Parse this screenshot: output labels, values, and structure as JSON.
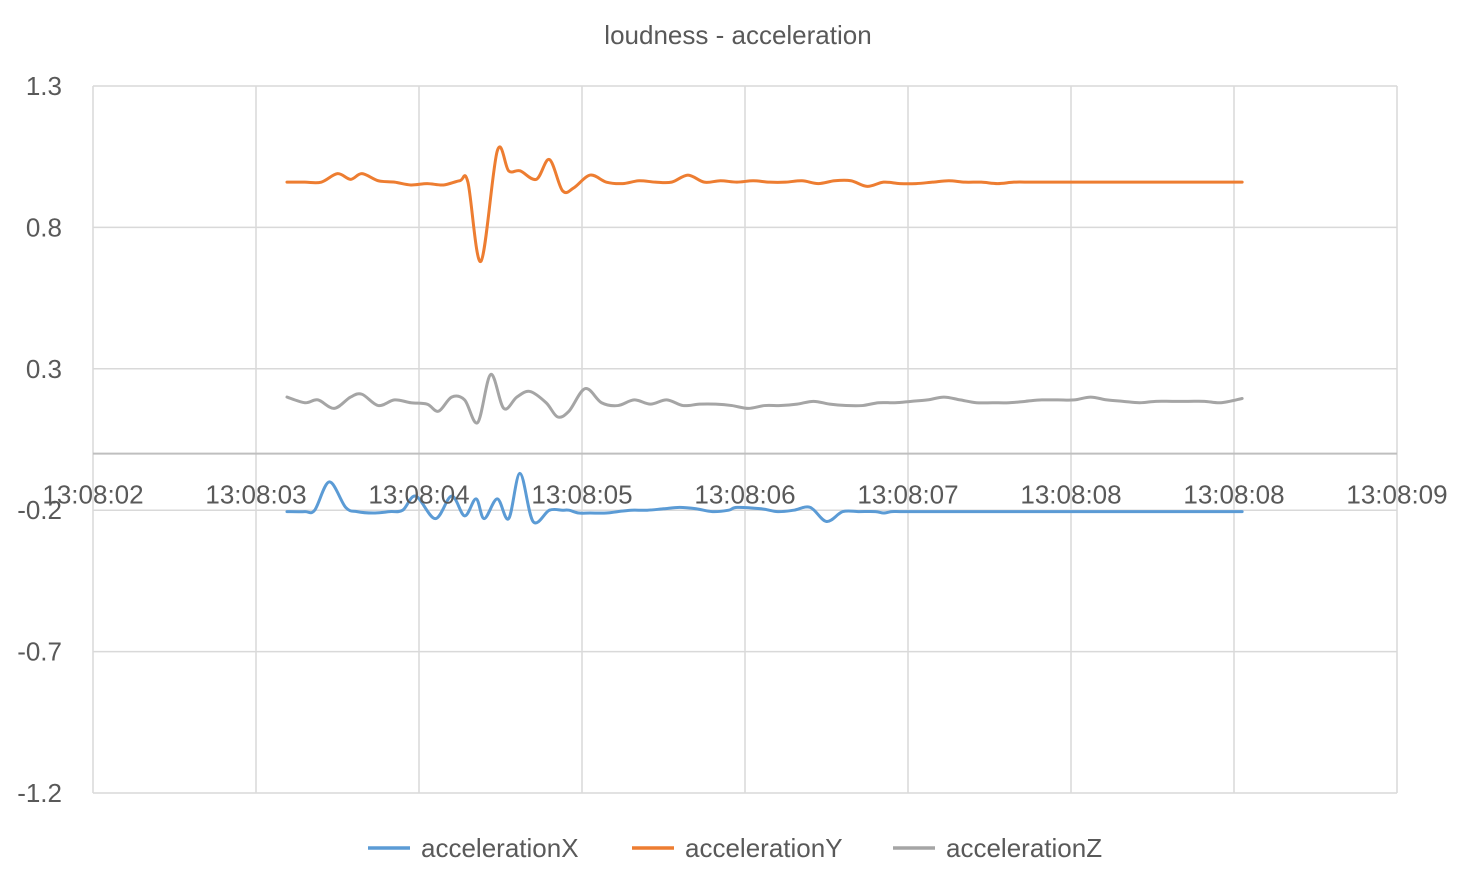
{
  "chart_data": {
    "type": "line",
    "title": "loudness - acceleration",
    "xlabel": "",
    "ylabel": "",
    "ylim": [
      -1.2,
      1.3
    ],
    "xlim": [
      0,
      8
    ],
    "y_ticks": [
      "1.3",
      "0.8",
      "0.3",
      "-0.2",
      "-0.7",
      "-1.2"
    ],
    "y_tick_values": [
      1.3,
      0.8,
      0.3,
      -0.2,
      -0.7,
      -1.2
    ],
    "x_ticks": [
      "13:08:02",
      "13:08:03",
      "13:08:04",
      "13:08:05",
      "13:08:06",
      "13:08:07",
      "13:08:08",
      "13:08:08",
      "13:08:09"
    ],
    "x_tick_values": [
      0,
      1,
      2,
      3,
      4,
      5,
      6,
      7,
      8
    ],
    "x_axis_crosses_y": 0,
    "grid": true,
    "legend_position": "bottom",
    "series": [
      {
        "name": "accelerationX",
        "color": "#5B9BD5",
        "x": [
          1.19,
          1.3,
          1.36,
          1.45,
          1.55,
          1.62,
          1.72,
          1.82,
          1.9,
          1.98,
          2.1,
          2.2,
          2.28,
          2.35,
          2.4,
          2.48,
          2.55,
          2.62,
          2.7,
          2.8,
          2.88,
          2.92,
          2.98,
          3.05,
          3.15,
          3.22,
          3.3,
          3.4,
          3.5,
          3.6,
          3.7,
          3.8,
          3.9,
          3.95,
          4.1,
          4.2,
          4.3,
          4.4,
          4.5,
          4.6,
          4.7,
          4.8,
          4.85,
          4.9,
          4.95,
          5.05,
          5.1,
          5.2,
          5.3,
          5.4,
          5.5,
          5.6,
          5.7,
          5.8,
          5.9,
          6.0,
          6.1,
          6.2,
          6.3,
          6.4,
          6.5,
          6.6,
          6.7,
          6.8,
          6.9,
          7.0,
          7.05
        ],
        "y": [
          -0.205,
          -0.205,
          -0.2,
          -0.1,
          -0.19,
          -0.205,
          -0.21,
          -0.205,
          -0.2,
          -0.15,
          -0.23,
          -0.15,
          -0.22,
          -0.16,
          -0.23,
          -0.16,
          -0.23,
          -0.07,
          -0.24,
          -0.2,
          -0.2,
          -0.2,
          -0.21,
          -0.21,
          -0.21,
          -0.205,
          -0.2,
          -0.2,
          -0.195,
          -0.19,
          -0.195,
          -0.205,
          -0.2,
          -0.19,
          -0.195,
          -0.205,
          -0.2,
          -0.19,
          -0.24,
          -0.205,
          -0.205,
          -0.205,
          -0.21,
          -0.205,
          -0.205,
          -0.205,
          -0.205,
          -0.205,
          -0.205,
          -0.205,
          -0.205,
          -0.205,
          -0.205,
          -0.205,
          -0.205,
          -0.205,
          -0.205,
          -0.205,
          -0.205,
          -0.205,
          -0.205,
          -0.205,
          -0.205,
          -0.205,
          -0.205,
          -0.205,
          -0.205
        ],
        "y_fixed": [
          -0.205,
          -0.205,
          -0.2,
          -0.1,
          -0.19,
          -0.205,
          -0.21,
          -0.205,
          -0.2,
          -0.15,
          -0.23,
          -0.15,
          -0.22,
          -0.16,
          -0.23,
          -0.16,
          -0.23,
          -0.07,
          -0.24,
          -0.2,
          -0.2,
          -0.2,
          -0.21,
          -0.21,
          -0.21,
          -0.205,
          -0.2,
          -0.2,
          -0.195,
          -0.19,
          -0.195,
          -0.205,
          -0.2,
          -0.19,
          -0.195,
          -0.205,
          -0.2,
          -0.19,
          -0.24,
          -0.205,
          -0.205,
          -0.205,
          -0.21,
          -0.205,
          -0.205,
          -0.205,
          -0.205,
          -0.205,
          -0.205,
          -0.205,
          -0.205,
          -0.205,
          -0.205,
          -0.205,
          -0.205,
          -0.205,
          -0.205,
          -0.205,
          -0.205,
          -0.205,
          -0.205,
          -0.205,
          -0.205,
          -0.205,
          -0.205,
          -0.205,
          -0.205
        ]
      },
      {
        "name": "accelerationY",
        "color": "#ED7D31",
        "x": [
          1.19,
          1.3,
          1.4,
          1.5,
          1.58,
          1.65,
          1.75,
          1.85,
          1.95,
          2.05,
          2.15,
          2.25,
          2.3,
          2.38,
          2.48,
          2.55,
          2.62,
          2.72,
          2.8,
          2.88,
          2.95,
          3.05,
          3.15,
          3.25,
          3.35,
          3.45,
          3.55,
          3.65,
          3.75,
          3.85,
          3.95,
          4.05,
          4.15,
          4.25,
          4.35,
          4.45,
          4.55,
          4.65,
          4.75,
          4.85,
          4.95,
          5.05,
          5.15,
          5.25,
          5.35,
          5.45,
          5.55,
          5.65,
          5.75,
          5.85,
          5.95,
          6.05,
          6.15,
          6.25,
          6.35,
          6.45,
          6.55,
          6.65,
          6.75,
          6.85,
          6.95,
          7.05
        ],
        "y": [
          0.96,
          0.96,
          0.965,
          0.98,
          0.96,
          0.97,
          0.955,
          0.96,
          0.945,
          0.96,
          0.955,
          0.96,
          0.95,
          0.68,
          1.07,
          1.0,
          0.99,
          0.96,
          1.04,
          0.94,
          0.95,
          0.975,
          0.96,
          0.95,
          0.96,
          0.955,
          0.955,
          0.97,
          0.96,
          0.96,
          0.96,
          0.97,
          0.96,
          0.96,
          0.96,
          0.96,
          0.955,
          0.96,
          0.94,
          0.96,
          0.955,
          0.955,
          0.955,
          0.96,
          0.96,
          0.955,
          0.955,
          0.955,
          0.955,
          0.955,
          0.955,
          0.955,
          0.955,
          0.955,
          0.955,
          0.955,
          0.955,
          0.955,
          0.955,
          0.955,
          0.96,
          0.96
        ],
        "y_fixed": [
          0.96,
          0.96,
          0.96,
          0.99,
          0.97,
          0.99,
          0.965,
          0.96,
          0.95,
          0.955,
          0.95,
          0.965,
          0.96,
          0.68,
          1.07,
          1.0,
          1.0,
          0.97,
          1.04,
          0.93,
          0.94,
          0.985,
          0.96,
          0.955,
          0.965,
          0.96,
          0.96,
          0.985,
          0.96,
          0.965,
          0.96,
          0.965,
          0.96,
          0.96,
          0.965,
          0.955,
          0.965,
          0.965,
          0.945,
          0.96,
          0.955,
          0.955,
          0.96,
          0.965,
          0.96,
          0.96,
          0.955,
          0.96,
          0.96,
          0.96,
          0.96,
          0.96,
          0.96,
          0.96,
          0.96,
          0.96,
          0.96,
          0.96,
          0.96,
          0.96,
          0.96,
          0.96
        ]
      },
      {
        "name": "accelerationZ",
        "color": "#A5A5A5",
        "x": [
          1.19,
          1.3,
          1.38,
          1.48,
          1.58,
          1.65,
          1.75,
          1.85,
          1.95,
          2.05,
          2.12,
          2.2,
          2.28,
          2.36,
          2.44,
          2.52,
          2.6,
          2.68,
          2.78,
          2.85,
          2.92,
          3.02,
          3.12,
          3.22,
          3.32,
          3.42,
          3.52,
          3.62,
          3.72,
          3.82,
          3.92,
          4.02,
          4.12,
          4.22,
          4.32,
          4.42,
          4.52,
          4.62,
          4.72,
          4.82,
          4.92,
          5.02,
          5.12,
          5.22,
          5.32,
          5.42,
          5.52,
          5.62,
          5.72,
          5.82,
          5.92,
          6.02,
          6.12,
          6.22,
          6.32,
          6.42,
          6.52,
          6.62,
          6.72,
          6.82,
          6.92,
          7.05
        ],
        "y": [
          0.2,
          0.18,
          0.19,
          0.16,
          0.2,
          0.21,
          0.17,
          0.19,
          0.18,
          0.175,
          0.15,
          0.2,
          0.19,
          0.11,
          0.28,
          0.16,
          0.2,
          0.22,
          0.18,
          0.13,
          0.15,
          0.23,
          0.18,
          0.17,
          0.19,
          0.175,
          0.19,
          0.17,
          0.175,
          0.175,
          0.17,
          0.16,
          0.17,
          0.17,
          0.175,
          0.185,
          0.175,
          0.17,
          0.17,
          0.18,
          0.18,
          0.185,
          0.19,
          0.2,
          0.19,
          0.18,
          0.18,
          0.18,
          0.185,
          0.19,
          0.19,
          0.19,
          0.2,
          0.19,
          0.185,
          0.18,
          0.185,
          0.185,
          0.185,
          0.185,
          0.18,
          0.195
        ]
      }
    ]
  }
}
